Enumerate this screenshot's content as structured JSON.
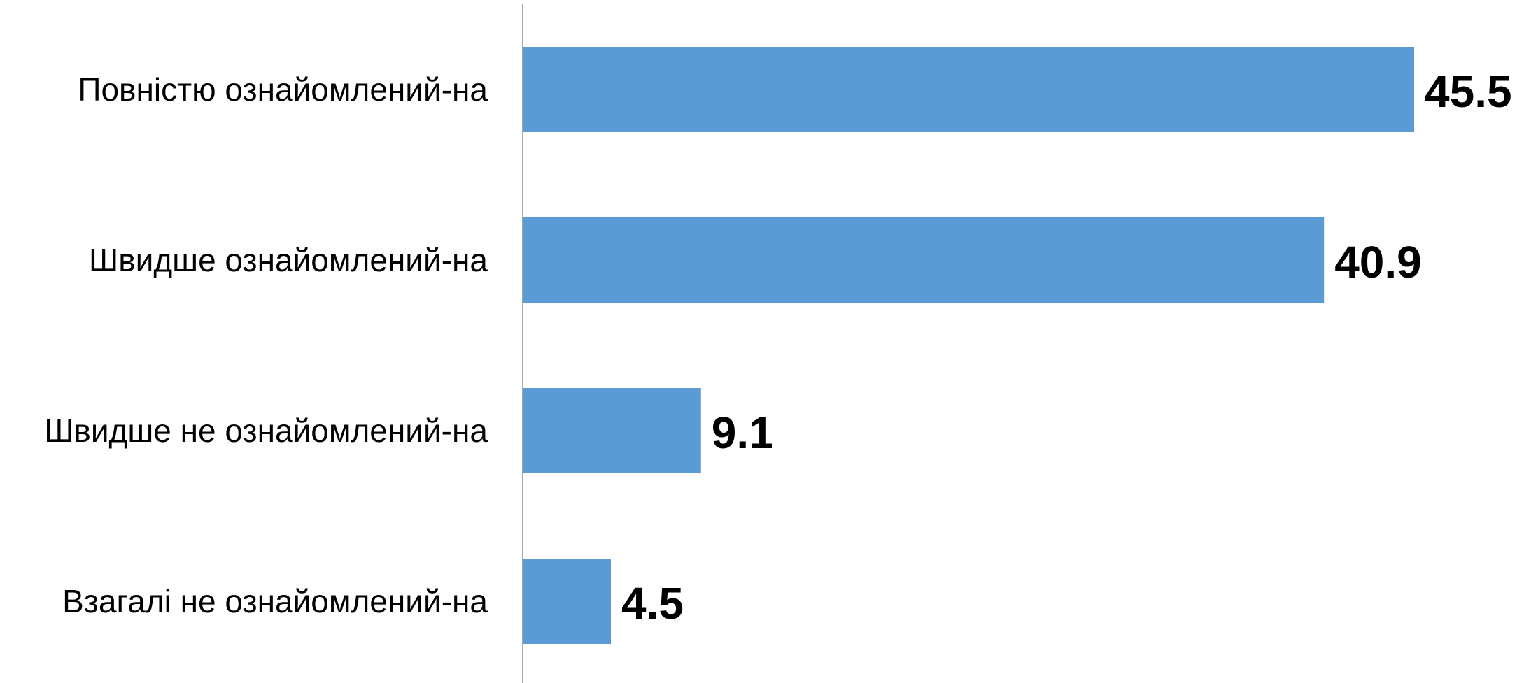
{
  "chart_data": {
    "type": "bar",
    "orientation": "horizontal",
    "title": "",
    "xlabel": "",
    "ylabel": "",
    "categories": [
      "Повністю ознайомлений-на",
      "Швидше ознайомлений-на",
      "Швидше не ознайомлений-на",
      "Взагалі не ознайомлений-на"
    ],
    "values": [
      45.5,
      40.9,
      9.1,
      4.5
    ],
    "value_labels": [
      "45.5",
      "40.9",
      "9.1",
      "4.5"
    ],
    "xlim": [
      0,
      50
    ],
    "grid": false,
    "legend": "none",
    "colors": {
      "bar": "#5b9bd5",
      "axis": "#a6a6a6",
      "text": "#000000"
    }
  }
}
